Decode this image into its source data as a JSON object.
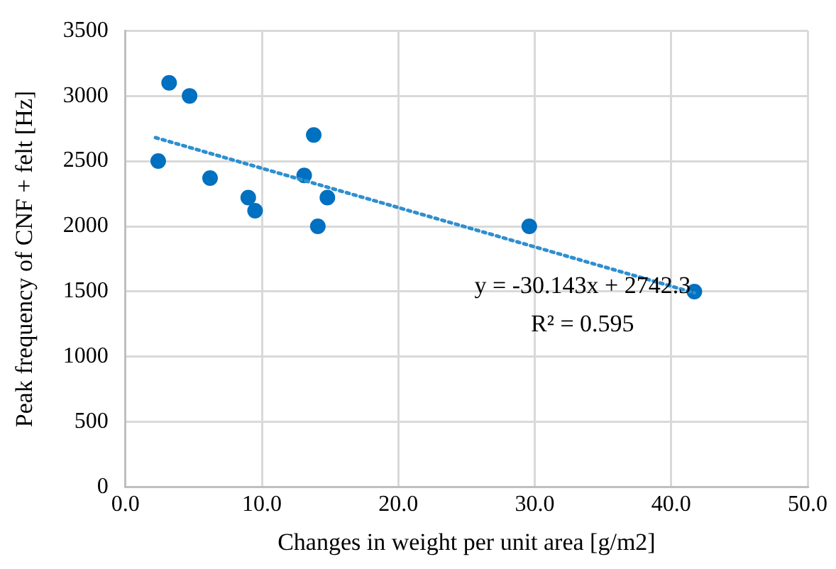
{
  "chart_data": {
    "type": "scatter",
    "xlabel": "Changes in weight per unit area [g/m2]",
    "ylabel": "Peak frequency of CNF + felt [Hz]",
    "xlim": [
      0,
      50
    ],
    "xticks": [
      {
        "value": 0,
        "label": "0.0"
      },
      {
        "value": 10,
        "label": "10.0"
      },
      {
        "value": 20,
        "label": "20.0"
      },
      {
        "value": 30,
        "label": "30.0"
      },
      {
        "value": 40,
        "label": "40.0"
      },
      {
        "value": 50,
        "label": "50.0"
      }
    ],
    "ylim": [
      0,
      3500
    ],
    "yticks": [
      0,
      500,
      1000,
      1500,
      2000,
      2500,
      3000,
      3500
    ],
    "grid": true,
    "marker": "circle",
    "series": [
      {
        "type": "scatter",
        "color": "#0070c0",
        "x": [
          2.4,
          3.2,
          4.7,
          6.2,
          9.0,
          9.5,
          13.1,
          13.8,
          14.1,
          14.8,
          29.6,
          41.7
        ],
        "values": [
          2500,
          3100,
          3000,
          2370,
          2220,
          2120,
          2390,
          2700,
          2000,
          2220,
          2000,
          1500
        ]
      },
      {
        "type": "line",
        "color": "#2e8fd0",
        "line_style": "dotted",
        "marker": "none",
        "x": [
          2.2,
          41.7
        ],
        "values": [
          2680,
          1490
        ]
      }
    ],
    "annotations": [
      "y = -30.143x + 2742.3",
      "R² = 0.595"
    ]
  }
}
